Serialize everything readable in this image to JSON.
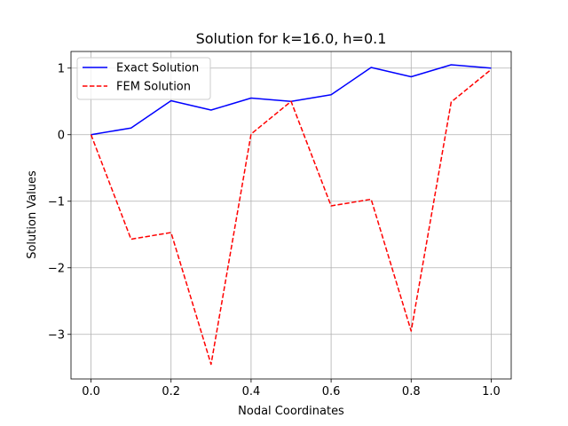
{
  "chart_data": {
    "type": "line",
    "title": "Solution for k=16.0, h=0.1",
    "xlabel": "Nodal Coordinates",
    "ylabel": "Solution Values",
    "xlim": [
      -0.05,
      1.05
    ],
    "ylim": [
      -3.67,
      1.25
    ],
    "grid": true,
    "legend_position": "upper-left",
    "x": [
      0.0,
      0.1,
      0.2,
      0.3,
      0.4,
      0.5,
      0.6,
      0.7,
      0.8,
      0.9,
      1.0
    ],
    "series": [
      {
        "name": "Exact Solution",
        "color": "#0000ff",
        "style": "solid",
        "values": [
          0.0,
          0.1,
          0.51,
          0.37,
          0.55,
          0.5,
          0.6,
          1.01,
          0.87,
          1.05,
          1.0
        ]
      },
      {
        "name": "FEM Solution",
        "color": "#ff0000",
        "style": "dashed",
        "values": [
          0.0,
          -1.57,
          -1.47,
          -3.45,
          0.01,
          0.5,
          -1.07,
          -0.97,
          -2.95,
          0.49,
          0.98
        ]
      }
    ],
    "x_ticks": [
      {
        "value": 0.0,
        "label": "0.0"
      },
      {
        "value": 0.2,
        "label": "0.2"
      },
      {
        "value": 0.4,
        "label": "0.4"
      },
      {
        "value": 0.6,
        "label": "0.6"
      },
      {
        "value": 0.8,
        "label": "0.8"
      },
      {
        "value": 1.0,
        "label": "1.0"
      }
    ],
    "y_ticks": [
      {
        "value": -3,
        "label": "−3"
      },
      {
        "value": -2,
        "label": "−2"
      },
      {
        "value": -1,
        "label": "−1"
      },
      {
        "value": 0,
        "label": "0"
      },
      {
        "value": 1,
        "label": "1"
      }
    ]
  }
}
